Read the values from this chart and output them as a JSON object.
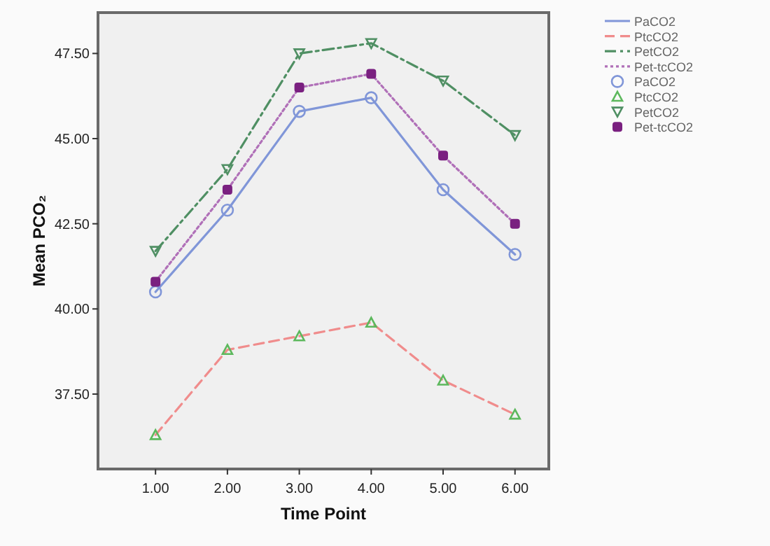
{
  "chart_data": {
    "type": "line",
    "xlabel": "Time Point",
    "ylabel": "Mean PCO₂",
    "x": [
      1,
      2,
      3,
      4,
      5,
      6
    ],
    "xlim": [
      0.2,
      6.47
    ],
    "xticks": [
      {
        "value": 1,
        "label": "1.00"
      },
      {
        "value": 2,
        "label": "2.00"
      },
      {
        "value": 3,
        "label": "3.00"
      },
      {
        "value": 4,
        "label": "4.00"
      },
      {
        "value": 5,
        "label": "5.00"
      },
      {
        "value": 6,
        "label": "6.00"
      }
    ],
    "ylim": [
      35.3,
      48.7
    ],
    "yticks": [
      {
        "value": 37.5,
        "label": "37.50"
      },
      {
        "value": 40,
        "label": "40.00"
      },
      {
        "value": 42.5,
        "label": "42.50"
      },
      {
        "value": 45,
        "label": "45.00"
      },
      {
        "value": 47.5,
        "label": "47.50"
      }
    ],
    "grid": false,
    "legend": "right",
    "series": [
      {
        "name": "PaCO2",
        "color": "#8096d8",
        "marker": "none",
        "line_style": "solid",
        "values": [
          40.5,
          42.9,
          45.8,
          46.2,
          43.5,
          41.6
        ]
      },
      {
        "name": "PtcCO2",
        "color": "#f08c8c",
        "marker": "none",
        "line_style": "dashed",
        "values": [
          36.3,
          38.8,
          39.2,
          39.6,
          37.9,
          36.9
        ]
      },
      {
        "name": "PetCO2",
        "color": "#4f8f63",
        "marker": "none",
        "line_style": "dashdot",
        "values": [
          41.7,
          44.1,
          47.5,
          47.8,
          46.7,
          45.1
        ]
      },
      {
        "name": "Pet-tcCO2",
        "color": "#b070b8",
        "marker": "none",
        "line_style": "dotted",
        "values": [
          40.8,
          43.5,
          46.5,
          46.9,
          44.5,
          42.5
        ]
      },
      {
        "name": "PaCO2",
        "type": "scatter",
        "color": "#8096d8",
        "marker": "circle",
        "values": [
          40.5,
          42.9,
          45.8,
          46.2,
          43.5,
          41.6
        ]
      },
      {
        "name": "PtcCO2",
        "type": "scatter",
        "color": "#5cb85c",
        "marker": "triangle",
        "values": [
          36.3,
          38.8,
          39.2,
          39.6,
          37.9,
          36.9
        ]
      },
      {
        "name": "PetCO2",
        "type": "scatter",
        "color": "#4f8f63",
        "marker": "triangle-down",
        "values": [
          41.7,
          44.1,
          47.5,
          47.8,
          46.7,
          45.1
        ]
      },
      {
        "name": "Pet-tcCO2",
        "type": "scatter",
        "color": "#7a2080",
        "marker": "square",
        "values": [
          40.8,
          43.5,
          46.5,
          46.9,
          44.5,
          42.5
        ]
      }
    ]
  }
}
